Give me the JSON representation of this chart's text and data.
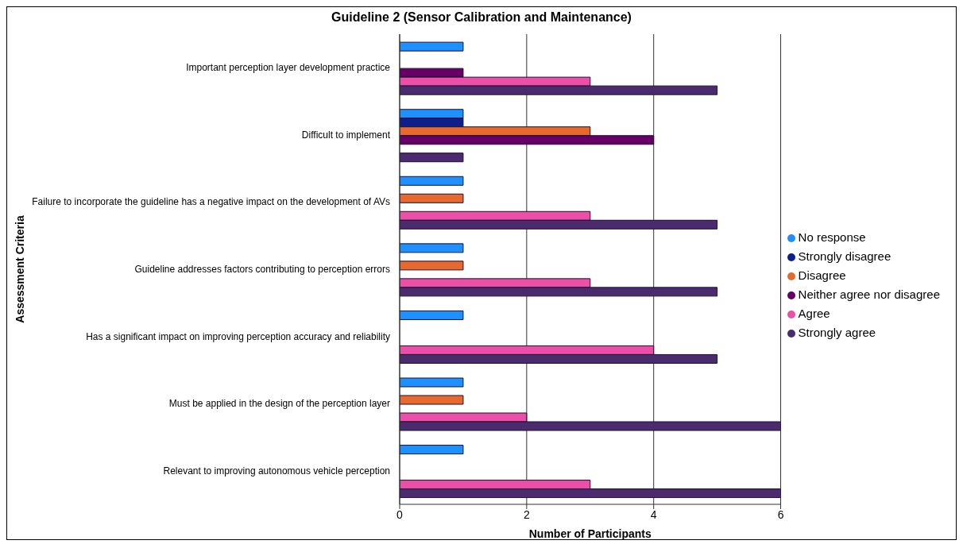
{
  "chart_data": {
    "type": "bar",
    "orientation": "horizontal",
    "title": "Guideline 2 (Sensor Calibration and Maintenance)",
    "xlabel": "Number of Participants",
    "ylabel": "Assessment Criteria",
    "categories": [
      "Important perception layer development practice",
      "Difficult to implement",
      "Failure to incorporate the guideline has a negative impact on the development of AVs",
      "Guideline addresses factors contributing to perception errors",
      "Has a significant impact on improving perception accuracy and reliability",
      "Must be applied in the design of the perception layer",
      "Relevant to improving autonomous vehicle perception"
    ],
    "series": [
      {
        "name": "No response",
        "color": "#1e90ff",
        "values": [
          1,
          1,
          1,
          1,
          1,
          1,
          1
        ]
      },
      {
        "name": "Strongly disagree",
        "color": "#0d1f8c",
        "values": [
          0,
          1,
          0,
          0,
          0,
          0,
          0
        ]
      },
      {
        "name": "Disagree",
        "color": "#e8692e",
        "values": [
          0,
          3,
          1,
          1,
          0,
          1,
          0
        ]
      },
      {
        "name": "Neither agree nor disagree",
        "color": "#660066",
        "values": [
          1,
          4,
          0,
          0,
          0,
          0,
          0
        ]
      },
      {
        "name": "Agree",
        "color": "#ec4fa8",
        "values": [
          3,
          0,
          3,
          3,
          4,
          2,
          3
        ]
      },
      {
        "name": "Strongly agree",
        "color": "#4b2a6e",
        "values": [
          5,
          1,
          5,
          5,
          5,
          6,
          6
        ]
      }
    ],
    "xlim": [
      0,
      6
    ],
    "xticks": [
      0,
      2,
      4,
      6
    ],
    "grid": "x",
    "legend": "right"
  }
}
